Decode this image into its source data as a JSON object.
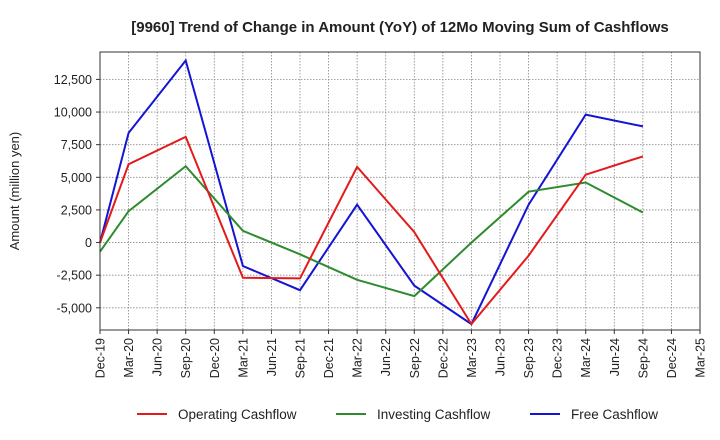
{
  "chart_data": {
    "type": "line",
    "title": "[9960]  Trend of Change in Amount (YoY) of 12Mo Moving Sum of Cashflows",
    "xlabel": "",
    "ylabel": "Amount (million yen)",
    "ylim": [
      -6700,
      14600
    ],
    "y_ticks": [
      12500,
      10000,
      7500,
      5000,
      2500,
      0,
      -2500,
      -5000
    ],
    "y_tick_labels": [
      "12,500",
      "10,000",
      "7,500",
      "5,000",
      "2,500",
      "0",
      "-2,500",
      "-5,000"
    ],
    "categories": [
      "Dec-19",
      "Mar-20",
      "Jun-20",
      "Sep-20",
      "Dec-20",
      "Mar-21",
      "Jun-21",
      "Sep-21",
      "Dec-21",
      "Mar-22",
      "Jun-22",
      "Sep-22",
      "Dec-22",
      "Mar-23",
      "Jun-23",
      "Sep-23",
      "Dec-23",
      "Mar-24",
      "Jun-24",
      "Sep-24",
      "Dec-24",
      "Mar-25"
    ],
    "grid": true,
    "legend_position": "bottom",
    "series": [
      {
        "name": "Operating Cashflow",
        "color": "#e31a1c",
        "values": [
          0,
          6000,
          null,
          8100,
          null,
          -2700,
          null,
          -2750,
          null,
          5800,
          null,
          800,
          null,
          -6250,
          null,
          -1000,
          null,
          5200,
          null,
          6600,
          null,
          null
        ]
      },
      {
        "name": "Investing Cashflow",
        "color": "#2e8b2e",
        "values": [
          -700,
          2400,
          null,
          5850,
          null,
          900,
          null,
          -900,
          null,
          -2850,
          null,
          -4100,
          null,
          0,
          null,
          3900,
          null,
          4600,
          null,
          2300,
          null,
          null
        ]
      },
      {
        "name": "Free Cashflow",
        "color": "#1414d4",
        "values": [
          0,
          8400,
          null,
          13950,
          null,
          -1800,
          null,
          -3650,
          null,
          2900,
          null,
          -3300,
          null,
          -6250,
          null,
          2900,
          null,
          9800,
          null,
          8900,
          null,
          null
        ]
      }
    ]
  }
}
